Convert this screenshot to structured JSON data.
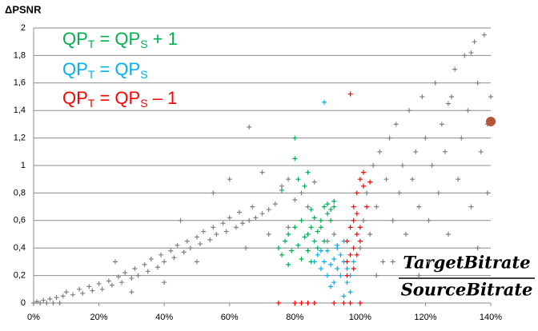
{
  "chart_data": {
    "type": "scatter",
    "y_label": "ΔPSNR",
    "annotation": {
      "numerator": "TargetBitrate",
      "denominator": "SourceBitrate"
    },
    "xlim": [
      0,
      140
    ],
    "xticks": [
      {
        "value": 0,
        "label": "0%"
      },
      {
        "value": 20,
        "label": "20%"
      },
      {
        "value": 40,
        "label": "40%"
      },
      {
        "value": 60,
        "label": "60%"
      },
      {
        "value": 80,
        "label": "80%"
      },
      {
        "value": 100,
        "label": "100%"
      },
      {
        "value": 120,
        "label": "120%"
      },
      {
        "value": 140,
        "label": "140%"
      }
    ],
    "ylim": [
      0,
      2
    ],
    "yticks": [
      0,
      {
        "value": 0.2,
        "label": "0,2"
      },
      {
        "value": 0.4,
        "label": "0,4"
      },
      {
        "value": 0.6,
        "label": "0,6"
      },
      {
        "value": 0.8,
        "label": "0,8"
      },
      1,
      {
        "value": 1.2,
        "label": "1,2"
      },
      {
        "value": 1.4,
        "label": "1,4"
      },
      {
        "value": 1.6,
        "label": "1,6"
      },
      {
        "value": 1.8,
        "label": "1,8"
      },
      2
    ],
    "grid": true,
    "marker": {
      "x": 140,
      "y": 1.32,
      "color": "#b5533c"
    },
    "series": [
      {
        "color": "#808080",
        "x": [
          0,
          2,
          4,
          6,
          8,
          1,
          3,
          5,
          7,
          9,
          10,
          12,
          14,
          15,
          17,
          18,
          20,
          21,
          23,
          24,
          26,
          27,
          28,
          30,
          31,
          32,
          34,
          35,
          36,
          38,
          39,
          40,
          42,
          43,
          44,
          46,
          47,
          48,
          50,
          51,
          52,
          54,
          55,
          56,
          58,
          59,
          60,
          62,
          63,
          64,
          66,
          67,
          68,
          70,
          72,
          74,
          66,
          70,
          76,
          78,
          80,
          82,
          84,
          86,
          25,
          45,
          55,
          60,
          50,
          40,
          30,
          65,
          72,
          78,
          90,
          92,
          100,
          101,
          102,
          103,
          104,
          105,
          106,
          107,
          108,
          109,
          110,
          111,
          112,
          113,
          114,
          115,
          116,
          117,
          118,
          119,
          120,
          121,
          122,
          123,
          124,
          125,
          126,
          127,
          128,
          129,
          130,
          131,
          132,
          133,
          134,
          135,
          136,
          137,
          138,
          139,
          140,
          134,
          127,
          121,
          118,
          136,
          139,
          110,
          105
        ],
        "values": [
          0,
          0,
          0,
          0,
          0,
          0.01,
          0.02,
          0.03,
          0.04,
          0.05,
          0.08,
          0.06,
          0.1,
          0.07,
          0.12,
          0.09,
          0.14,
          0.1,
          0.16,
          0.13,
          0.19,
          0.15,
          0.22,
          0.18,
          0.25,
          0.2,
          0.28,
          0.23,
          0.32,
          0.26,
          0.35,
          0.3,
          0.38,
          0.33,
          0.42,
          0.37,
          0.45,
          0.4,
          0.48,
          0.43,
          0.52,
          0.46,
          0.55,
          0.5,
          0.58,
          0.52,
          0.62,
          0.55,
          0.66,
          0.58,
          0.6,
          0.7,
          0.62,
          0.65,
          0.68,
          0.72,
          1.28,
          0.95,
          0.85,
          0.9,
          0.75,
          0.8,
          0.7,
          0.88,
          0.3,
          0.6,
          0.8,
          0.9,
          0.3,
          0.15,
          0.08,
          0.4,
          0.5,
          0.55,
          0.45,
          0.5,
          0.4,
          0.6,
          0.8,
          0.5,
          1.0,
          0.7,
          1.1,
          0.3,
          0.9,
          1.2,
          0.6,
          1.3,
          0.8,
          1.0,
          0.5,
          1.4,
          0.9,
          1.1,
          0.7,
          1.5,
          1.2,
          0.6,
          1.0,
          1.6,
          0.8,
          1.3,
          1.1,
          0.5,
          1.5,
          1.7,
          0.9,
          1.2,
          1.8,
          1.4,
          0.7,
          1.9,
          1.6,
          1.1,
          1.95,
          1.3,
          1.5,
          1.82,
          1.45,
          0.3,
          0.2,
          0.4,
          0.8,
          0.3,
          0.2
        ]
      },
      {
        "name": [
          "QP",
          "T",
          " = QP",
          "S",
          " + 1"
        ],
        "color": "#00b050",
        "x": [
          75,
          76,
          77,
          78,
          79,
          80,
          80,
          80,
          81,
          81,
          82,
          83,
          83,
          84,
          84,
          85,
          85,
          86,
          86,
          87,
          87,
          88,
          88,
          89,
          89,
          90,
          90,
          91,
          91,
          92,
          92,
          85,
          82,
          78,
          76,
          84
        ],
        "values": [
          0.4,
          0.35,
          0.45,
          0.5,
          0.38,
          0.55,
          1.2,
          1.05,
          0.9,
          0.42,
          0.6,
          0.85,
          0.48,
          0.95,
          0.5,
          0.55,
          0.3,
          0.45,
          0.62,
          0.52,
          0.4,
          0.6,
          0.55,
          0.7,
          0.45,
          0.65,
          0.72,
          0.68,
          0.6,
          0.7,
          0.74,
          0.68,
          0.32,
          0.28,
          0.82,
          0.38
        ]
      },
      {
        "name": [
          "QP",
          "T",
          " = QP",
          "S"
        ],
        "color": "#00b0f0",
        "x": [
          86,
          87,
          88,
          89,
          90,
          90,
          91,
          92,
          92,
          93,
          93,
          94,
          94,
          95,
          95,
          96,
          96,
          97,
          97,
          98,
          88,
          91,
          95,
          89,
          93
        ],
        "values": [
          0.3,
          0.35,
          0.25,
          0.3,
          0.2,
          0.38,
          0.28,
          0.32,
          0.15,
          0.25,
          0.4,
          0.35,
          0.2,
          0.3,
          0.45,
          0.25,
          0.15,
          0.2,
          0.08,
          0.3,
          0.38,
          0.12,
          0.05,
          1.46,
          0.42
        ]
      },
      {
        "name": [
          "QP",
          "T",
          " = QP",
          "S",
          " – 1"
        ],
        "color": "#ff0000",
        "x": [
          96,
          96,
          97,
          97,
          97,
          98,
          98,
          98,
          98,
          99,
          99,
          99,
          100,
          100,
          100,
          101,
          101,
          102,
          103,
          99,
          96,
          75,
          80,
          82,
          84,
          86,
          92,
          95,
          97,
          100
        ],
        "values": [
          0.3,
          0.45,
          0.35,
          0.55,
          1.52,
          0.4,
          0.6,
          0.7,
          0.25,
          0.5,
          0.8,
          0.65,
          0.45,
          0.55,
          0.9,
          0.85,
          0.95,
          0.7,
          0.88,
          0.35,
          0.2,
          0,
          0,
          0,
          0,
          0,
          0,
          0,
          0,
          0
        ]
      }
    ]
  }
}
